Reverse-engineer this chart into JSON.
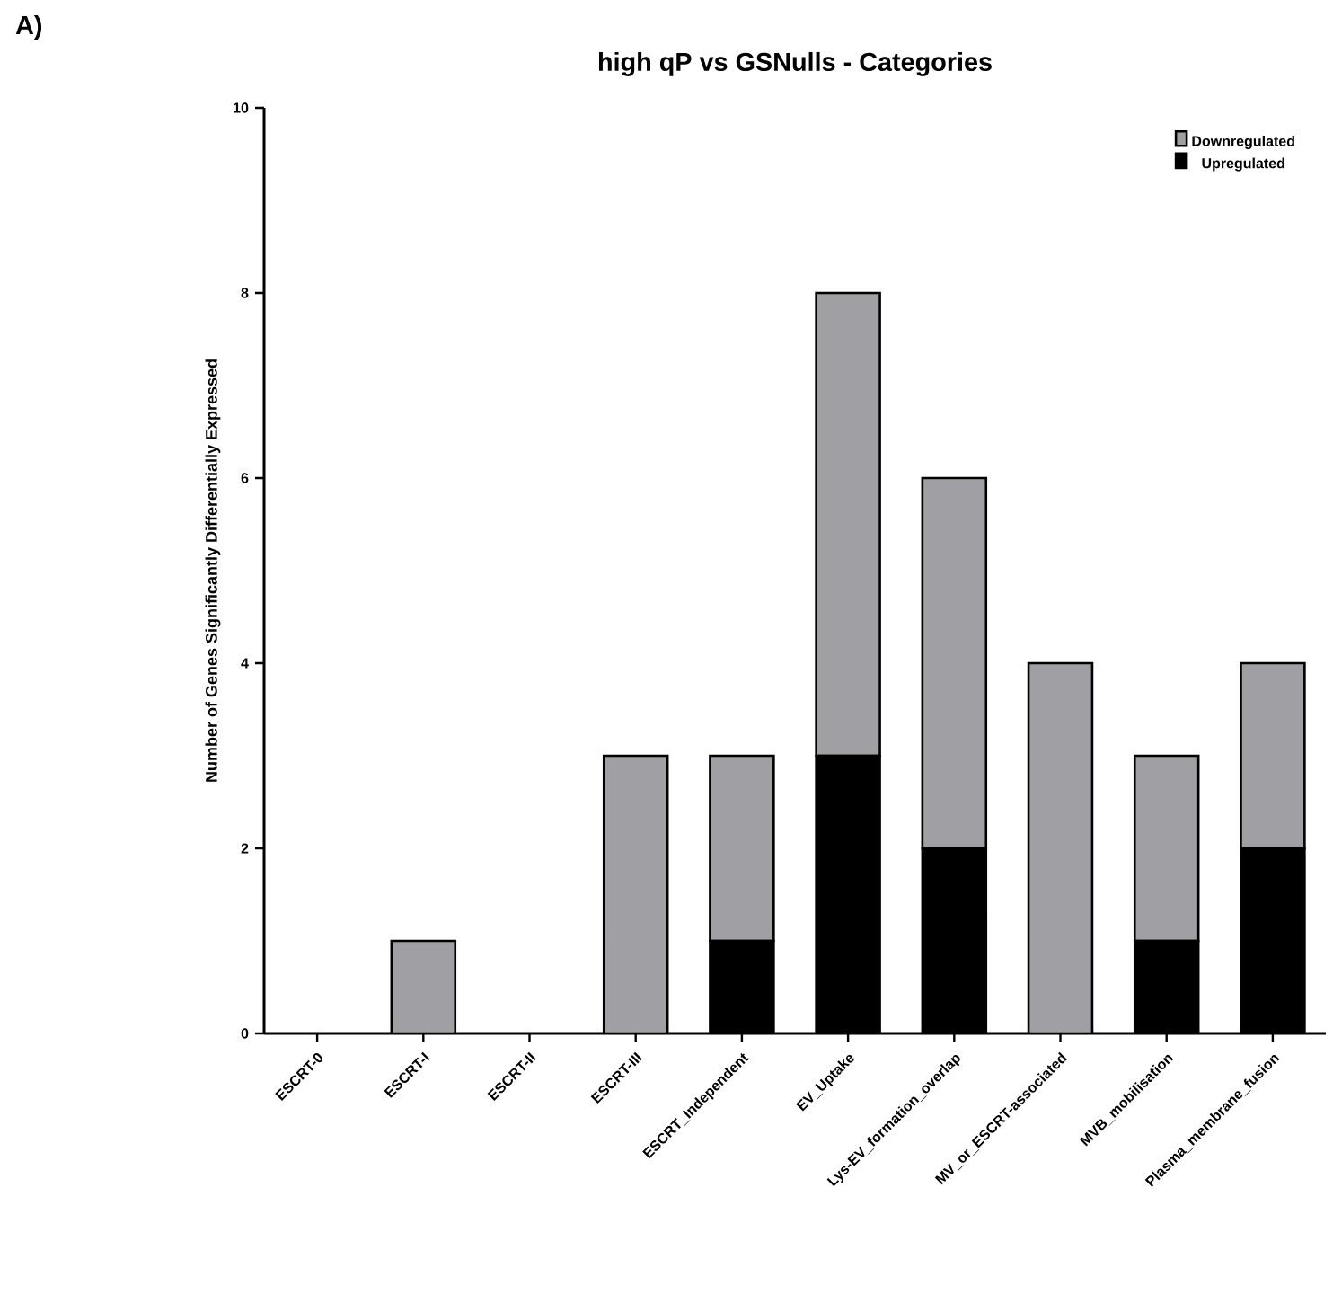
{
  "chart_data": {
    "type": "bar",
    "title": "high qP vs GSNulls - Categories",
    "ylabel": "Number of Genes Significantly Differentially Expressed",
    "categories": [
      "ESCRT-0",
      "ESCRT-I",
      "ESCRT-II",
      "ESCRT-III",
      "ESCRT_Independent",
      "EV_Uptake",
      "Lys-EV_formation_overlap",
      "MV_or_ESCRT-associated",
      "MVB_mobilisation",
      "Plasma_membrane_fusion"
    ],
    "series": [
      {
        "name": "Upregulated",
        "color": "#000000",
        "values": [
          0,
          0,
          0,
          0,
          1,
          3,
          2,
          0,
          1,
          2
        ]
      },
      {
        "name": "Downregulated",
        "color": "#a0a0a4",
        "values": [
          0,
          1,
          0,
          3,
          2,
          5,
          4,
          4,
          2,
          2
        ]
      }
    ],
    "stacked": true,
    "ylim": [
      0,
      10
    ],
    "yticks": [
      0,
      2,
      4,
      6,
      8,
      10
    ],
    "legend": "top right",
    "annotations": [
      "A)"
    ]
  }
}
